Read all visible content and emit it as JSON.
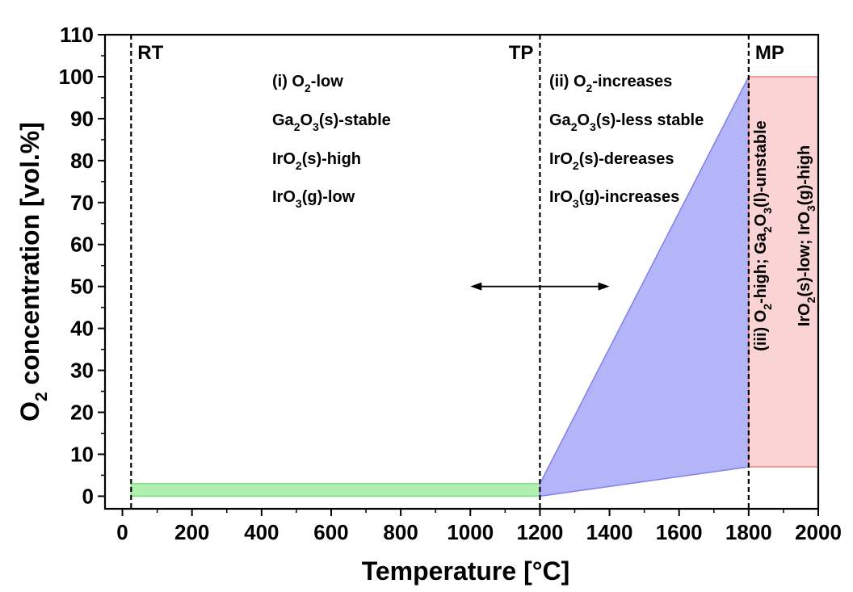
{
  "chart_data": {
    "type": "area",
    "xlabel": "Temperature [°C]",
    "ylabel_main": "O",
    "ylabel_sub": "2",
    "ylabel_rest": " concentration [vol.%]",
    "xlim": [
      -50,
      2000
    ],
    "ylim": [
      -3,
      110
    ],
    "x_ticks": [
      0,
      200,
      400,
      600,
      800,
      1000,
      1200,
      1400,
      1600,
      1800,
      2000
    ],
    "y_ticks": [
      0,
      10,
      20,
      30,
      40,
      50,
      60,
      70,
      80,
      90,
      100,
      110
    ],
    "grid": false,
    "vlines": [
      {
        "x": 25,
        "label": "RT"
      },
      {
        "x": 1200,
        "label": "TP"
      },
      {
        "x": 1800,
        "label": "MP"
      }
    ],
    "regions": [
      {
        "name": "green-band",
        "color": "#b0f0b0",
        "stroke": "#7be07b",
        "points": [
          [
            25,
            0
          ],
          [
            1200,
            0
          ],
          [
            1200,
            3
          ],
          [
            25,
            3
          ]
        ]
      },
      {
        "name": "blue-wedge",
        "color": "#b4b4f8",
        "stroke": "#8080e8",
        "points": [
          [
            1200,
            0
          ],
          [
            1800,
            7
          ],
          [
            1800,
            100
          ],
          [
            1200,
            3
          ]
        ]
      },
      {
        "name": "red-box",
        "color": "#fad4d4",
        "stroke": "#f08080",
        "points": [
          [
            1800,
            7
          ],
          [
            2000,
            7
          ],
          [
            2000,
            100
          ],
          [
            1800,
            100
          ]
        ]
      }
    ],
    "double_arrow": {
      "x1": 1000,
      "x2": 1400,
      "y": 50
    }
  },
  "annotations": {
    "region1": [
      [
        {
          "t": "(i) O"
        },
        {
          "t": "2",
          "sub": true
        },
        {
          "t": "-low"
        }
      ],
      [
        {
          "t": "Ga"
        },
        {
          "t": "2",
          "sub": true
        },
        {
          "t": "O"
        },
        {
          "t": "3",
          "sub": true
        },
        {
          "t": "(s)-stable"
        }
      ],
      [
        {
          "t": "IrO"
        },
        {
          "t": "2",
          "sub": true
        },
        {
          "t": "(s)-high"
        }
      ],
      [
        {
          "t": "IrO"
        },
        {
          "t": "3",
          "sub": true
        },
        {
          "t": "(g)-low"
        }
      ]
    ],
    "region2": [
      [
        {
          "t": "(ii) O"
        },
        {
          "t": "2",
          "sub": true
        },
        {
          "t": "-increases"
        }
      ],
      [
        {
          "t": "Ga"
        },
        {
          "t": "2",
          "sub": true
        },
        {
          "t": "O"
        },
        {
          "t": "3",
          "sub": true
        },
        {
          "t": "(s)-less stable"
        }
      ],
      [
        {
          "t": "IrO"
        },
        {
          "t": "2",
          "sub": true
        },
        {
          "t": "(s)-dereases"
        }
      ],
      [
        {
          "t": "IrO"
        },
        {
          "t": "3",
          "sub": true
        },
        {
          "t": "(g)-increases"
        }
      ]
    ],
    "region3": [
      [
        {
          "t": "(iii) O"
        },
        {
          "t": "2",
          "sub": true
        },
        {
          "t": "-high; Ga"
        },
        {
          "t": "2",
          "sub": true
        },
        {
          "t": "O"
        },
        {
          "t": "3",
          "sub": true
        },
        {
          "t": "(l)-unstable"
        }
      ],
      [
        {
          "t": "IrO"
        },
        {
          "t": "2",
          "sub": true
        },
        {
          "t": "(s)-low; IrO"
        },
        {
          "t": "3",
          "sub": true
        },
        {
          "t": "(g)-high"
        }
      ]
    ]
  }
}
